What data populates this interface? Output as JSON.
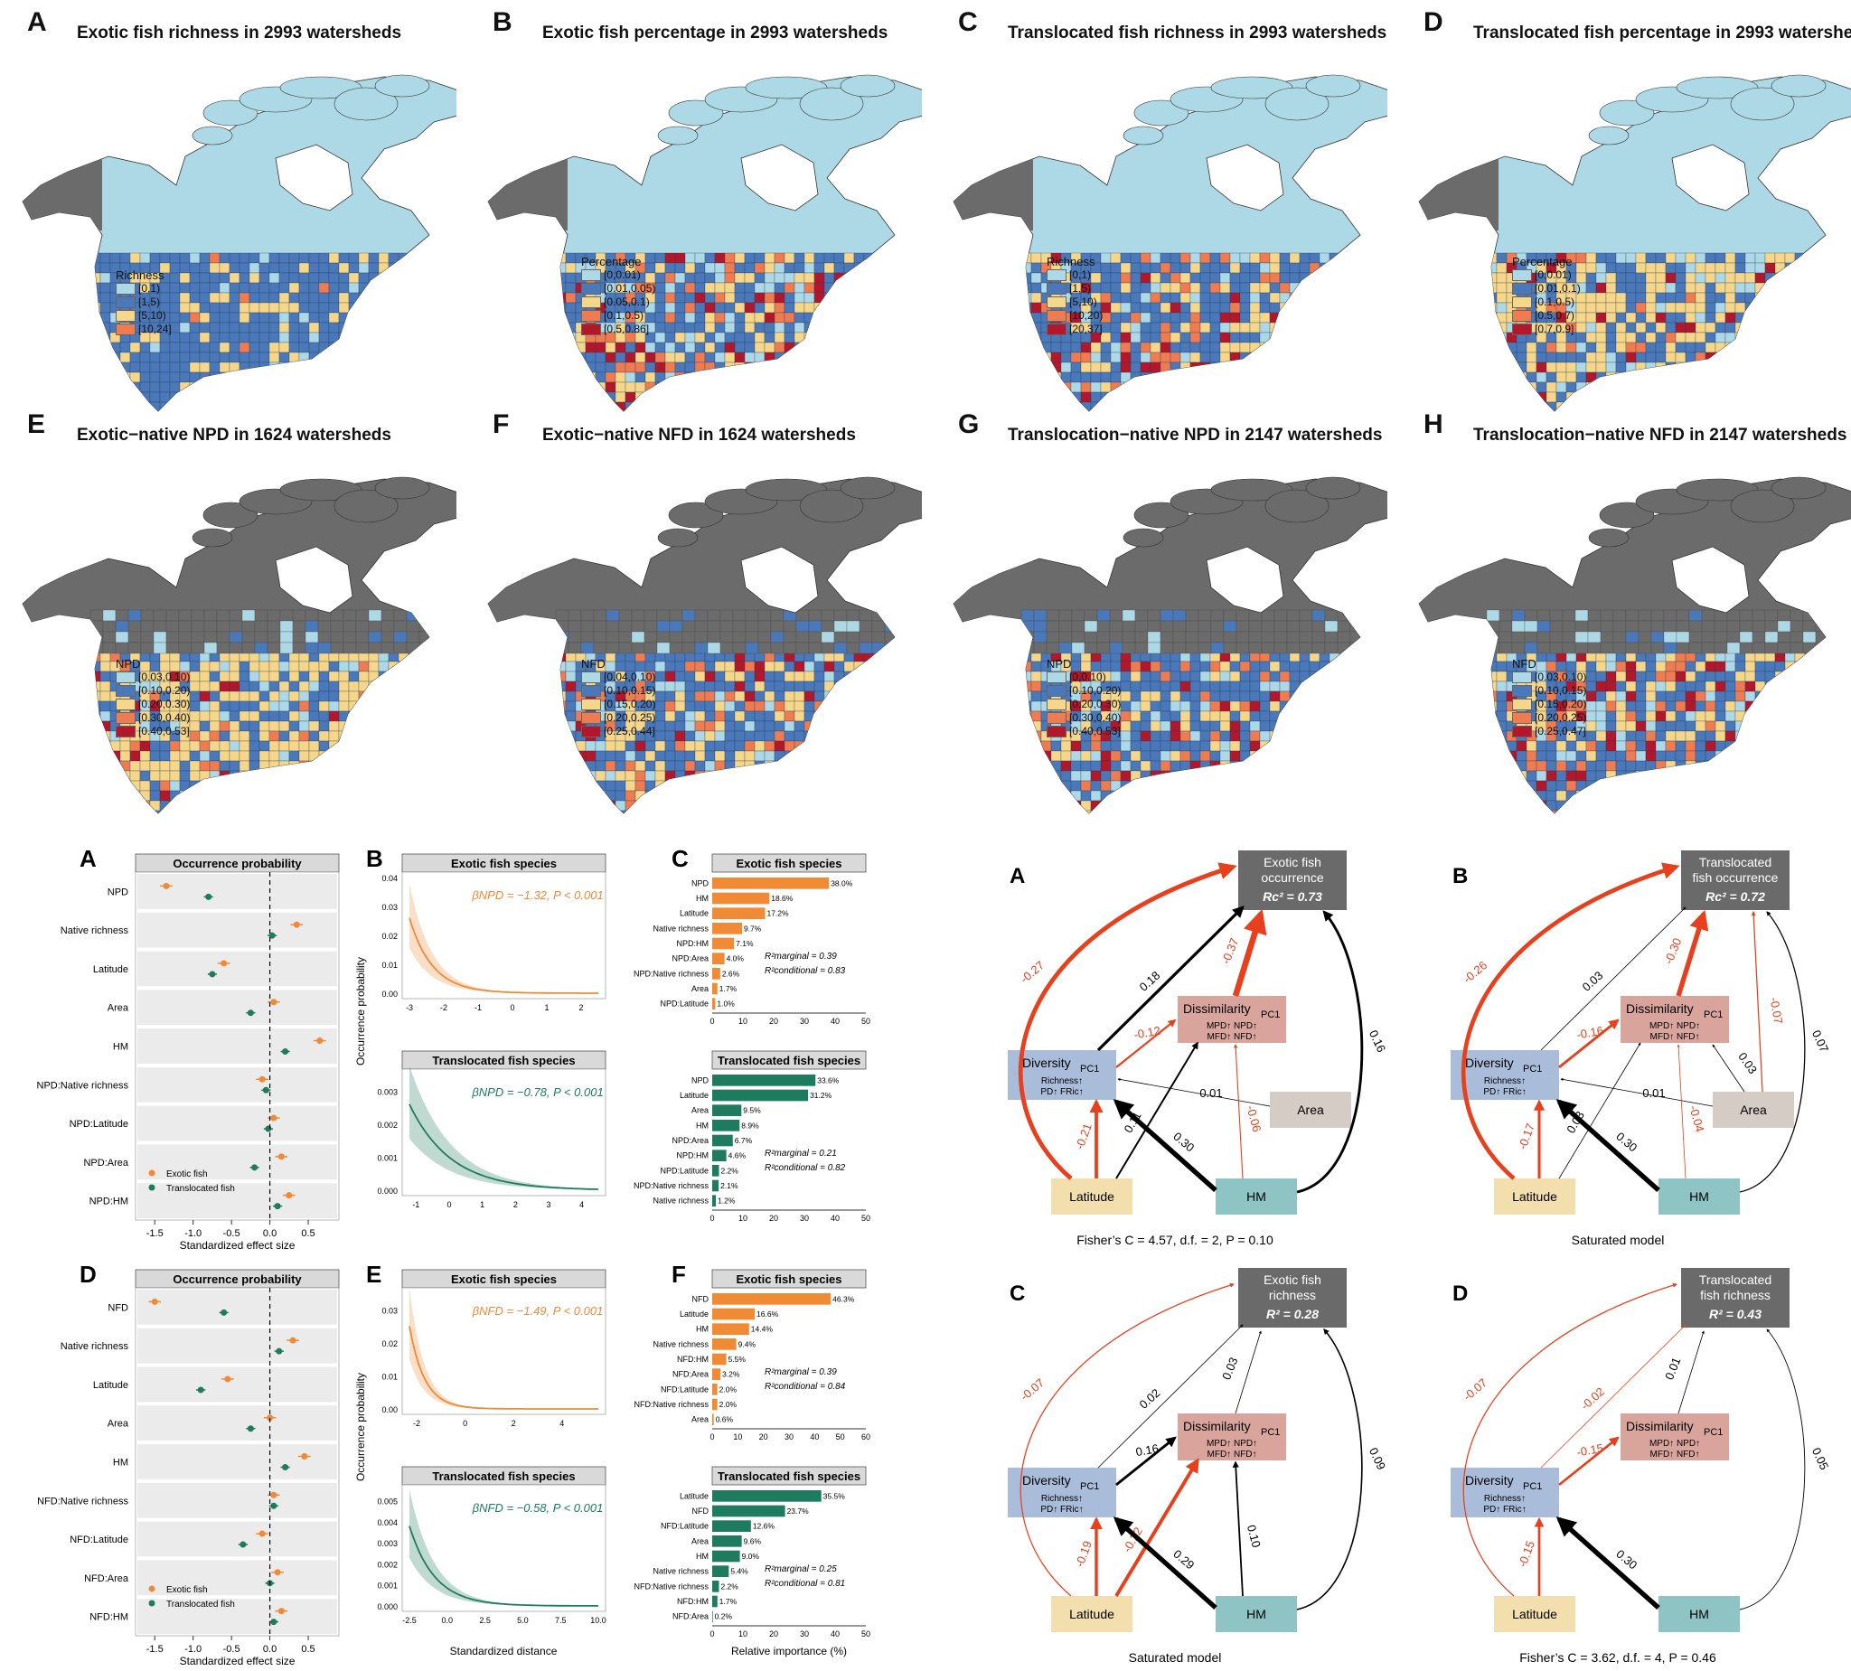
{
  "maps": [
    {
      "letter": "A",
      "title": "Exotic fish richness in 2993 watersheds",
      "legend_title": "Richness",
      "classes": [
        "[0,1)",
        "[1,5)",
        "[5,10)",
        "[10,24]"
      ],
      "colors": [
        "#add8e6",
        "#4a78b8",
        "#f6d78a",
        "#ef7b51"
      ],
      "grey": false
    },
    {
      "letter": "B",
      "title": "Exotic fish percentage in 2993 watersheds",
      "legend_title": "Percentage",
      "classes": [
        "[0,0.01)",
        "[0.01,0.05)",
        "[0.05,0.1)",
        "[0.1,0.5)",
        "[0.5,0.86]"
      ],
      "colors": [
        "#add8e6",
        "#4a78b8",
        "#f6d78a",
        "#ef7b51",
        "#b2182b"
      ],
      "grey": false
    },
    {
      "letter": "C",
      "title": "Translocated fish richness in 2993 watersheds",
      "legend_title": "Richness",
      "classes": [
        "[0,1)",
        "[1,5)",
        "[5,10)",
        "[10,20)",
        "[20,37]"
      ],
      "colors": [
        "#add8e6",
        "#4a78b8",
        "#f6d78a",
        "#ef7b51",
        "#b2182b"
      ],
      "grey": false
    },
    {
      "letter": "D",
      "title": "Translocated fish percentage in 2993 watersheds",
      "legend_title": "Percentage",
      "classes": [
        "[0,0.01)",
        "[0.01,0.1)",
        "[0.1,0.5)",
        "[0.5,0.7)",
        "[0.7,0.9]"
      ],
      "colors": [
        "#add8e6",
        "#4a78b8",
        "#f6d78a",
        "#ef7b51",
        "#b2182b"
      ],
      "grey": false
    },
    {
      "letter": "E",
      "title": "Exotic−native NPD in 1624 watersheds",
      "legend_title": "NPD",
      "classes": [
        "[0.03,0.10)",
        "[0.10,0.20)",
        "[0.20,0.30)",
        "[0.30,0.40)",
        "[0.40,0.53]"
      ],
      "colors": [
        "#add8e6",
        "#4a78b8",
        "#f6d78a",
        "#ef7b51",
        "#b2182b"
      ],
      "grey": true
    },
    {
      "letter": "F",
      "title": "Exotic−native NFD in 1624 watersheds",
      "legend_title": "NFD",
      "classes": [
        "[0.04,0.10)",
        "[0.10,0.15)",
        "[0.15,0.20)",
        "[0.20,0.25)",
        "[0.25,0.44]"
      ],
      "colors": [
        "#add8e6",
        "#4a78b8",
        "#f6d78a",
        "#ef7b51",
        "#b2182b"
      ],
      "grey": true
    },
    {
      "letter": "G",
      "title": "Translocation−native NPD in 2147 watersheds",
      "legend_title": "NPD",
      "classes": [
        "[0,0.10)",
        "[0.10,0.20)",
        "[0.20,0.30)",
        "[0.30,0.40)",
        "[0.40,0.53]"
      ],
      "colors": [
        "#add8e6",
        "#4a78b8",
        "#f6d78a",
        "#ef7b51",
        "#b2182b"
      ],
      "grey": true
    },
    {
      "letter": "H",
      "title": "Translocation−native NFD in 2147 watersheds",
      "legend_title": "NFD",
      "classes": [
        "[0.03,0.10)",
        "[0.10,0.15)",
        "[0.15,0.20)",
        "[0.20,0.25)",
        "[0.25,0.47]"
      ],
      "colors": [
        "#add8e6",
        "#4a78b8",
        "#f6d78a",
        "#ef7b51",
        "#b2182b"
      ],
      "grey": true
    }
  ],
  "fig2": {
    "letters": [
      "A",
      "B",
      "C",
      "D",
      "E",
      "F"
    ],
    "strip_occurrence": "Occurrence probability",
    "strip_exotic": "Exotic fish species",
    "strip_trans": "Translocated fish species",
    "forest_xlabel": "Standardized effect size",
    "curve_xlabel": "Standardized distance",
    "curve_ylabel": "Occurrence probability",
    "imp_xlabel": "Relative importance (%)",
    "legend_exotic": "Exotic fish",
    "legend_trans": "Translocated fish",
    "forest_ticks": [
      "-1.5",
      "-1.0",
      "-0.5",
      "0.0",
      "0.5"
    ],
    "forest_top": {
      "labels": [
        "NPD",
        "Native richness",
        "Latitude",
        "Area",
        "HM",
        "NPD:Native richness",
        "NPD:Latitude",
        "NPD:Area",
        "NPD:HM"
      ],
      "exotic": [
        -1.35,
        0.35,
        -0.6,
        0.05,
        0.65,
        -0.1,
        0.05,
        0.15,
        0.25
      ],
      "trans": [
        -0.8,
        0.03,
        -0.75,
        -0.25,
        0.2,
        -0.05,
        -0.02,
        -0.2,
        0.1
      ]
    },
    "forest_bot": {
      "labels": [
        "NFD",
        "Native richness",
        "Latitude",
        "Area",
        "HM",
        "NFD:Native richness",
        "NFD:Latitude",
        "NFD:Area",
        "NFD:HM"
      ],
      "exotic": [
        -1.5,
        0.3,
        -0.55,
        0.0,
        0.45,
        0.05,
        -0.1,
        0.1,
        0.15
      ],
      "trans": [
        -0.6,
        0.12,
        -0.9,
        -0.25,
        0.2,
        0.05,
        -0.35,
        0.0,
        0.05
      ]
    },
    "curves": [
      {
        "beta": "βNPD = −1.32, P < 0.001",
        "ymax": 0.04,
        "yticks": [
          "0.00",
          "0.01",
          "0.02",
          "0.03",
          "0.04"
        ],
        "xticks": [
          "-3",
          "-2",
          "-1",
          "0",
          "1",
          "2"
        ],
        "xmin": -3,
        "xmax": 2.5,
        "y0": 0.026,
        "k": 1.5,
        "color": "#f08a35"
      },
      {
        "beta": "βNPD = −0.78, P < 0.001",
        "ymax": 0.0035,
        "yticks": [
          "0.000",
          "0.001",
          "0.002",
          "0.003"
        ],
        "xticks": [
          "-1",
          "0",
          "1",
          "2",
          "3",
          "4"
        ],
        "xmin": -1.2,
        "xmax": 4.5,
        "y0": 0.0026,
        "k": 0.8,
        "color": "#1e7b5e"
      },
      {
        "beta": "βNFD = −1.49, P < 0.001",
        "ymax": 0.035,
        "yticks": [
          "0.00",
          "0.01",
          "0.02",
          "0.03"
        ],
        "xticks": [
          "-2",
          "0",
          "2",
          "4"
        ],
        "xmin": -2.3,
        "xmax": 5.5,
        "y0": 0.025,
        "k": 1.6,
        "color": "#f08a35"
      },
      {
        "beta": "βNFD = −0.58, P < 0.001",
        "ymax": 0.0055,
        "yticks": [
          "0.000",
          "0.001",
          "0.002",
          "0.003",
          "0.004",
          "0.005"
        ],
        "xticks": [
          "-2.5",
          "0.0",
          "2.5",
          "5.0",
          "7.5",
          "10.0"
        ],
        "xmin": -2.5,
        "xmax": 10,
        "y0": 0.0038,
        "k": 0.6,
        "color": "#1e7b5e"
      }
    ],
    "imp": [
      {
        "labels": [
          "NPD",
          "HM",
          "Latitude",
          "Native richness",
          "NPD:HM",
          "NPD:Area",
          "NPD:Native richness",
          "Area",
          "NPD:Latitude"
        ],
        "values": [
          38.0,
          18.6,
          17.2,
          9.7,
          7.1,
          4.0,
          2.6,
          1.7,
          1.0
        ],
        "texts": [
          "38.0%",
          "18.6%",
          "17.2%",
          "9.7%",
          "7.1%",
          "4.0%",
          "2.6%",
          "1.7%",
          "1.0%"
        ],
        "color": "#f08a35",
        "xmax": 50,
        "xticks": [
          "0",
          "10",
          "20",
          "30",
          "40",
          "50"
        ],
        "r2m": "R²marginal = 0.39",
        "r2c": "R²conditional = 0.83"
      },
      {
        "labels": [
          "NPD",
          "Latitude",
          "Area",
          "HM",
          "NPD:Area",
          "NPD:HM",
          "NPD:Latitude",
          "NPD:Native richness",
          "Native richness"
        ],
        "values": [
          33.6,
          31.2,
          9.5,
          8.9,
          6.7,
          4.6,
          2.2,
          2.1,
          1.2
        ],
        "texts": [
          "33.6%",
          "31.2%",
          "9.5%",
          "8.9%",
          "6.7%",
          "4.6%",
          "2.2%",
          "2.1%",
          "1.2%"
        ],
        "color": "#1e7b5e",
        "xmax": 50,
        "xticks": [
          "0",
          "10",
          "20",
          "30",
          "40",
          "50"
        ],
        "r2m": "R²marginal = 0.21",
        "r2c": "R²conditional = 0.82"
      },
      {
        "labels": [
          "NFD",
          "Latitude",
          "HM",
          "Native richness",
          "NFD:HM",
          "NFD:Area",
          "NFD:Latitude",
          "NFD:Native richness",
          "Area"
        ],
        "values": [
          46.3,
          16.6,
          14.4,
          9.4,
          5.5,
          3.2,
          2.0,
          2.0,
          0.6
        ],
        "texts": [
          "46.3%",
          "16.6%",
          "14.4%",
          "9.4%",
          "5.5%",
          "3.2%",
          "2.0%",
          "2.0%",
          "0.6%"
        ],
        "color": "#f08a35",
        "xmax": 60,
        "xticks": [
          "0",
          "10",
          "20",
          "30",
          "40",
          "50",
          "60"
        ],
        "r2m": "R²marginal = 0.39",
        "r2c": "R²conditional = 0.84"
      },
      {
        "labels": [
          "Latitude",
          "NFD",
          "NFD:Latitude",
          "Area",
          "HM",
          "Native richness",
          "NFD:Native richness",
          "NFD:HM",
          "NFD:Area"
        ],
        "values": [
          35.5,
          23.7,
          12.6,
          9.6,
          9.0,
          5.4,
          2.2,
          1.7,
          0.2
        ],
        "texts": [
          "35.5%",
          "23.7%",
          "12.6%",
          "9.6%",
          "9.0%",
          "5.4%",
          "2.2%",
          "1.7%",
          "0.2%"
        ],
        "color": "#1e7b5e",
        "xmax": 50,
        "xticks": [
          "0",
          "10",
          "20",
          "30",
          "40",
          "50"
        ],
        "r2m": "R²marginal = 0.25",
        "r2c": "R²conditional = 0.81"
      }
    ]
  },
  "sem": [
    {
      "letter": "A",
      "outcome": [
        "Exotic fish",
        "occurrence"
      ],
      "r2": "Rc² = 0.73",
      "footer": "Fisher’s C = 4.57,  d.f. = 2,  P = 0.10",
      "area": true,
      "coefs": {
        "lat_out": "-0.27",
        "div_out": "0.18",
        "dis_out": "-0.37",
        "hm_out": "0.16",
        "div_dis": "-0.12",
        "area_div": "0.01",
        "lat_div": "-0.21",
        "lat_dis": "0.11",
        "hm_div": "0.30",
        "hm_dis": "-0.06",
        "area_dis": "",
        "area_out": ""
      }
    },
    {
      "letter": "B",
      "outcome": [
        "Translocated",
        "fish occurrence"
      ],
      "r2": "Rc² = 0.72",
      "footer": "Saturated model",
      "area": true,
      "coefs": {
        "lat_out": "-0.26",
        "div_out": "0.03",
        "dis_out": "-0.30",
        "hm_out": "0.07",
        "div_dis": "-0.16",
        "area_div": "0.01",
        "lat_div": "-0.17",
        "lat_dis": "0.03",
        "hm_div": "0.30",
        "hm_dis": "-0.04",
        "area_dis": "0.03",
        "area_out": "-0.07"
      }
    },
    {
      "letter": "C",
      "outcome": [
        "Exotic fish",
        "richness"
      ],
      "r2": "R² = 0.28",
      "footer": "Saturated model",
      "area": false,
      "coefs": {
        "lat_out": "-0.07",
        "div_out": "0.02",
        "dis_out": "0.03",
        "hm_out": "0.09",
        "div_dis": "0.16",
        "lat_div": "-0.19",
        "lat_dis": "-0.22",
        "hm_div": "0.29",
        "hm_dis": "0.10"
      }
    },
    {
      "letter": "D",
      "outcome": [
        "Translocated",
        "fish richness"
      ],
      "r2": "R² = 0.43",
      "footer": "Fisher’s C = 3.62,  d.f. = 4,  P = 0.46",
      "area": false,
      "coefs": {
        "lat_out": "-0.07",
        "div_out": "-0.02",
        "dis_out": "0.01",
        "hm_out": "0.05",
        "div_dis": "-0.15",
        "lat_div": "-0.15",
        "hm_div": "0.30"
      }
    }
  ],
  "sem_nodes": {
    "diversity": "Diversity",
    "pc1": "PC1",
    "div_sub1": "Richness↑",
    "div_sub2": "PD↑  FRic↑",
    "dissimilarity": "Dissimilarity",
    "dis_sub1": "MPD↑ NPD↑",
    "dis_sub2": "MFD↑ NFD↑",
    "area": "Area",
    "latitude": "Latitude",
    "hm": "HM"
  },
  "colors": {
    "orange": "#f08a35",
    "green": "#1e7b5e",
    "red": "#e8401c",
    "lightblue": "#add8e6",
    "blue": "#4a78b8",
    "yellow": "#f6d78a",
    "grey": "#6b6b6b"
  }
}
